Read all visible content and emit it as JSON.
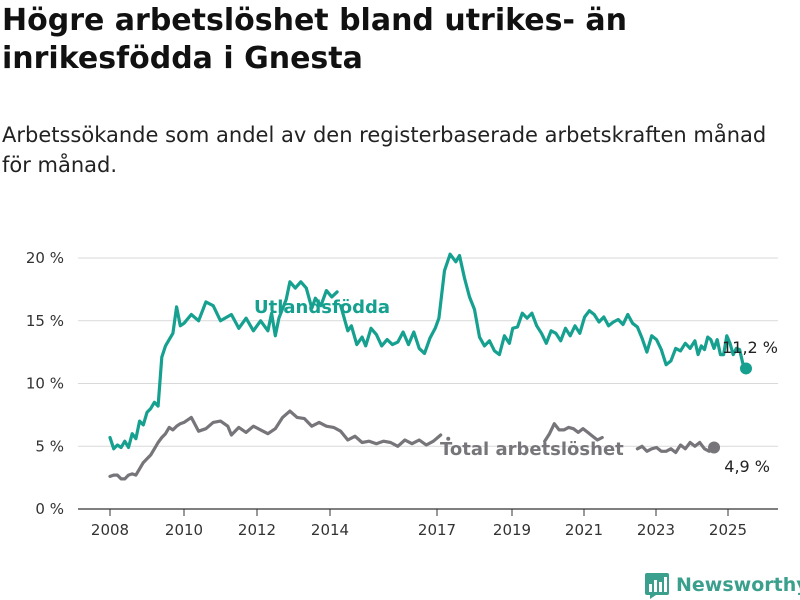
{
  "title": "Högre arbetslöshet bland utrikes- än inrikesfödda i Gnesta",
  "subtitle": "Arbetssökande som andel av den registerbaserade arbetskraften månad för månad.",
  "brand": "Newsworthy",
  "colors": {
    "utland": "#16a08f",
    "total": "#77757a",
    "grid": "#d9d9d9",
    "brand": "#3a9f8c"
  },
  "chart_data": {
    "type": "line",
    "title": "Högre arbetslöshet bland utrikes- än inrikesfödda i Gnesta",
    "subtitle": "Arbetssökande som andel av den registerbaserade arbetskraften månad för månad.",
    "xlabel": "",
    "ylabel": "",
    "x_range": [
      2007.6,
      2025.95
    ],
    "x_ticks": [
      2008,
      2010,
      2012,
      2014,
      2017,
      2019,
      2021,
      2023,
      2025
    ],
    "x_tick_labels": [
      "2008",
      "2010",
      "2012",
      "2014",
      "2017",
      "2019",
      "2021",
      "2023",
      "2025"
    ],
    "ylim": [
      0,
      20
    ],
    "y_ticks": [
      0,
      5,
      10,
      15,
      20
    ],
    "y_tick_labels": [
      "0 %",
      "5 %",
      "10 %",
      "15 %",
      "20 %"
    ],
    "grid": true,
    "legend": "inline labels",
    "series": [
      {
        "name": "Utlandsfödda",
        "label_anchor": [
          2013.0,
          16.0
        ],
        "end_label": "11,2 %",
        "end_value": [
          2025.5,
          11.2
        ],
        "segments": [
          [
            [
              2008.0,
              5.7
            ],
            [
              2008.1,
              4.8
            ],
            [
              2008.2,
              5.1
            ],
            [
              2008.3,
              4.9
            ],
            [
              2008.4,
              5.4
            ],
            [
              2008.5,
              4.9
            ],
            [
              2008.6,
              6.0
            ],
            [
              2008.7,
              5.6
            ],
            [
              2008.8,
              7.0
            ],
            [
              2008.9,
              6.7
            ],
            [
              2009.0,
              7.7
            ],
            [
              2009.1,
              8.0
            ],
            [
              2009.2,
              8.5
            ],
            [
              2009.3,
              8.2
            ],
            [
              2009.4,
              12.1
            ],
            [
              2009.5,
              13.0
            ],
            [
              2009.6,
              13.5
            ],
            [
              2009.7,
              14.0
            ],
            [
              2009.8,
              16.1
            ],
            [
              2009.9,
              14.6
            ],
            [
              2010.0,
              14.8
            ],
            [
              2010.2,
              15.5
            ],
            [
              2010.4,
              15.0
            ],
            [
              2010.6,
              16.5
            ],
            [
              2010.8,
              16.2
            ],
            [
              2011.0,
              15.0
            ],
            [
              2011.3,
              15.5
            ],
            [
              2011.5,
              14.4
            ],
            [
              2011.7,
              15.2
            ],
            [
              2011.9,
              14.2
            ],
            [
              2012.1,
              15.0
            ],
            [
              2012.3,
              14.2
            ],
            [
              2012.4,
              15.6
            ],
            [
              2012.5,
              13.8
            ],
            [
              2012.6,
              15.2
            ],
            [
              2012.8,
              16.7
            ],
            [
              2012.9,
              18.1
            ],
            [
              2013.05,
              17.6
            ],
            [
              2013.2,
              18.1
            ],
            [
              2013.35,
              17.6
            ],
            [
              2013.5,
              16.0
            ],
            [
              2013.6,
              16.8
            ],
            [
              2013.75,
              16.2
            ],
            [
              2013.9,
              17.4
            ],
            [
              2014.05,
              16.9
            ],
            [
              2014.2,
              17.3
            ]
          ],
          [
            [
              2014.3,
              16.2
            ],
            [
              2014.5,
              14.2
            ],
            [
              2014.6,
              14.6
            ],
            [
              2014.75,
              13.1
            ],
            [
              2014.9,
              13.7
            ],
            [
              2015.0,
              13.0
            ],
            [
              2015.15,
              14.4
            ],
            [
              2015.3,
              13.9
            ],
            [
              2015.45,
              13.0
            ],
            [
              2015.6,
              13.5
            ],
            [
              2015.75,
              13.1
            ],
            [
              2015.9,
              13.3
            ],
            [
              2016.05,
              14.1
            ],
            [
              2016.2,
              13.1
            ],
            [
              2016.35,
              14.1
            ],
            [
              2016.5,
              12.8
            ],
            [
              2016.65,
              12.4
            ],
            [
              2016.8,
              13.6
            ],
            [
              2016.95,
              14.4
            ],
            [
              2017.05,
              15.2
            ],
            [
              2017.2,
              19.0
            ],
            [
              2017.35,
              20.3
            ],
            [
              2017.5,
              19.7
            ],
            [
              2017.6,
              20.2
            ],
            [
              2017.75,
              18.4
            ],
            [
              2017.9,
              16.9
            ],
            [
              2018.05,
              15.9
            ],
            [
              2018.2,
              13.7
            ],
            [
              2018.35,
              13.0
            ],
            [
              2018.5,
              13.4
            ],
            [
              2018.65,
              12.6
            ],
            [
              2018.8,
              12.3
            ],
            [
              2018.95,
              13.8
            ],
            [
              2019.1,
              13.2
            ],
            [
              2019.2,
              14.4
            ],
            [
              2019.35,
              14.5
            ],
            [
              2019.5,
              15.6
            ],
            [
              2019.65,
              15.2
            ],
            [
              2019.8,
              15.6
            ],
            [
              2019.95,
              14.6
            ],
            [
              2020.1,
              14.0
            ],
            [
              2020.25,
              13.2
            ],
            [
              2020.4,
              14.2
            ],
            [
              2020.55,
              14.0
            ],
            [
              2020.7,
              13.4
            ],
            [
              2020.85,
              14.4
            ],
            [
              2021.0,
              13.8
            ],
            [
              2021.15,
              14.6
            ],
            [
              2021.3,
              14.0
            ],
            [
              2021.45,
              15.3
            ],
            [
              2021.6,
              15.8
            ],
            [
              2021.75,
              15.5
            ],
            [
              2021.9,
              14.9
            ],
            [
              2022.05,
              15.3
            ],
            [
              2022.2,
              14.6
            ],
            [
              2022.35,
              14.9
            ],
            [
              2022.5,
              15.1
            ],
            [
              2022.65,
              14.7
            ],
            [
              2022.8,
              15.5
            ],
            [
              2022.95,
              14.8
            ],
            [
              2023.1,
              14.5
            ],
            [
              2023.25,
              13.6
            ],
            [
              2023.4,
              12.5
            ],
            [
              2023.55,
              13.8
            ],
            [
              2023.7,
              13.5
            ],
            [
              2023.85,
              12.7
            ],
            [
              2024.0,
              11.5
            ],
            [
              2024.15,
              11.8
            ],
            [
              2024.3,
              12.8
            ],
            [
              2024.45,
              12.6
            ],
            [
              2024.6,
              13.2
            ],
            [
              2024.75,
              12.8
            ],
            [
              2024.9,
              13.4
            ],
            [
              2025.0,
              12.3
            ],
            [
              2025.1,
              13.0
            ],
            [
              2025.2,
              12.7
            ],
            [
              2025.3,
              13.7
            ],
            [
              2025.4,
              13.5
            ],
            [
              2025.5,
              12.8
            ],
            [
              2025.6,
              13.5
            ],
            [
              2025.7,
              12.3
            ],
            [
              2025.8,
              12.3
            ],
            [
              2025.9,
              13.8
            ],
            [
              2026.0,
              13.2
            ],
            [
              2026.1,
              12.3
            ],
            [
              2026.2,
              12.8
            ],
            [
              2026.3,
              12.7
            ],
            [
              2026.4,
              11.6
            ],
            [
              2026.5,
              11.2
            ]
          ]
        ]
      },
      {
        "name": "Total arbetslöshet",
        "label_anchor": [
          2018.0,
          4.3
        ],
        "end_label": "4,9 %",
        "end_value": [
          2025.5,
          4.9
        ],
        "segments": [
          [
            [
              2008.0,
              2.6
            ],
            [
              2008.1,
              2.7
            ],
            [
              2008.2,
              2.7
            ],
            [
              2008.3,
              2.4
            ],
            [
              2008.4,
              2.4
            ],
            [
              2008.5,
              2.7
            ],
            [
              2008.6,
              2.8
            ],
            [
              2008.7,
              2.7
            ],
            [
              2008.8,
              3.2
            ],
            [
              2008.9,
              3.7
            ],
            [
              2009.0,
              4.0
            ],
            [
              2009.1,
              4.3
            ],
            [
              2009.2,
              4.8
            ],
            [
              2009.3,
              5.3
            ],
            [
              2009.4,
              5.7
            ],
            [
              2009.5,
              6.0
            ],
            [
              2009.6,
              6.5
            ],
            [
              2009.7,
              6.3
            ],
            [
              2009.8,
              6.6
            ],
            [
              2009.9,
              6.8
            ],
            [
              2010.0,
              6.9
            ],
            [
              2010.2,
              7.3
            ],
            [
              2010.4,
              6.2
            ],
            [
              2010.6,
              6.4
            ],
            [
              2010.8,
              6.9
            ],
            [
              2011.0,
              7.0
            ],
            [
              2011.2,
              6.6
            ],
            [
              2011.3,
              5.9
            ],
            [
              2011.5,
              6.5
            ],
            [
              2011.7,
              6.1
            ],
            [
              2011.9,
              6.6
            ],
            [
              2012.1,
              6.3
            ],
            [
              2012.3,
              6.0
            ],
            [
              2012.5,
              6.4
            ],
            [
              2012.7,
              7.3
            ],
            [
              2012.9,
              7.8
            ],
            [
              2013.1,
              7.3
            ],
            [
              2013.3,
              7.2
            ],
            [
              2013.5,
              6.6
            ],
            [
              2013.7,
              6.9
            ],
            [
              2013.9,
              6.6
            ],
            [
              2014.1,
              6.5
            ],
            [
              2014.3,
              6.2
            ],
            [
              2014.5,
              5.5
            ],
            [
              2014.7,
              5.8
            ],
            [
              2014.9,
              5.3
            ],
            [
              2015.1,
              5.4
            ],
            [
              2015.3,
              5.2
            ],
            [
              2015.5,
              5.4
            ],
            [
              2015.7,
              5.3
            ],
            [
              2015.9,
              5.0
            ],
            [
              2016.1,
              5.5
            ],
            [
              2016.3,
              5.2
            ],
            [
              2016.5,
              5.5
            ],
            [
              2016.7,
              5.1
            ],
            [
              2016.9,
              5.4
            ],
            [
              2017.1,
              5.9
            ]
          ],
          [
            [
              2017.3,
              5.6
            ]
          ],
          [
            [
              2020.2,
              5.4
            ],
            [
              2020.35,
              6.0
            ],
            [
              2020.5,
              6.8
            ],
            [
              2020.65,
              6.3
            ],
            [
              2020.8,
              6.3
            ],
            [
              2020.95,
              6.5
            ],
            [
              2021.1,
              6.4
            ],
            [
              2021.25,
              6.1
            ],
            [
              2021.4,
              6.4
            ],
            [
              2021.55,
              6.1
            ],
            [
              2021.7,
              5.8
            ],
            [
              2021.85,
              5.5
            ],
            [
              2022.0,
              5.7
            ]
          ],
          [
            [
              2023.1,
              4.8
            ],
            [
              2023.25,
              5.0
            ],
            [
              2023.4,
              4.6
            ],
            [
              2023.55,
              4.8
            ],
            [
              2023.7,
              4.9
            ],
            [
              2023.85,
              4.6
            ],
            [
              2024.0,
              4.6
            ],
            [
              2024.15,
              4.8
            ],
            [
              2024.3,
              4.5
            ],
            [
              2024.45,
              5.1
            ],
            [
              2024.6,
              4.8
            ],
            [
              2024.75,
              5.3
            ],
            [
              2024.9,
              5.0
            ],
            [
              2025.05,
              5.3
            ],
            [
              2025.2,
              4.8
            ],
            [
              2025.35,
              4.6
            ],
            [
              2025.5,
              4.9
            ]
          ]
        ]
      }
    ]
  }
}
